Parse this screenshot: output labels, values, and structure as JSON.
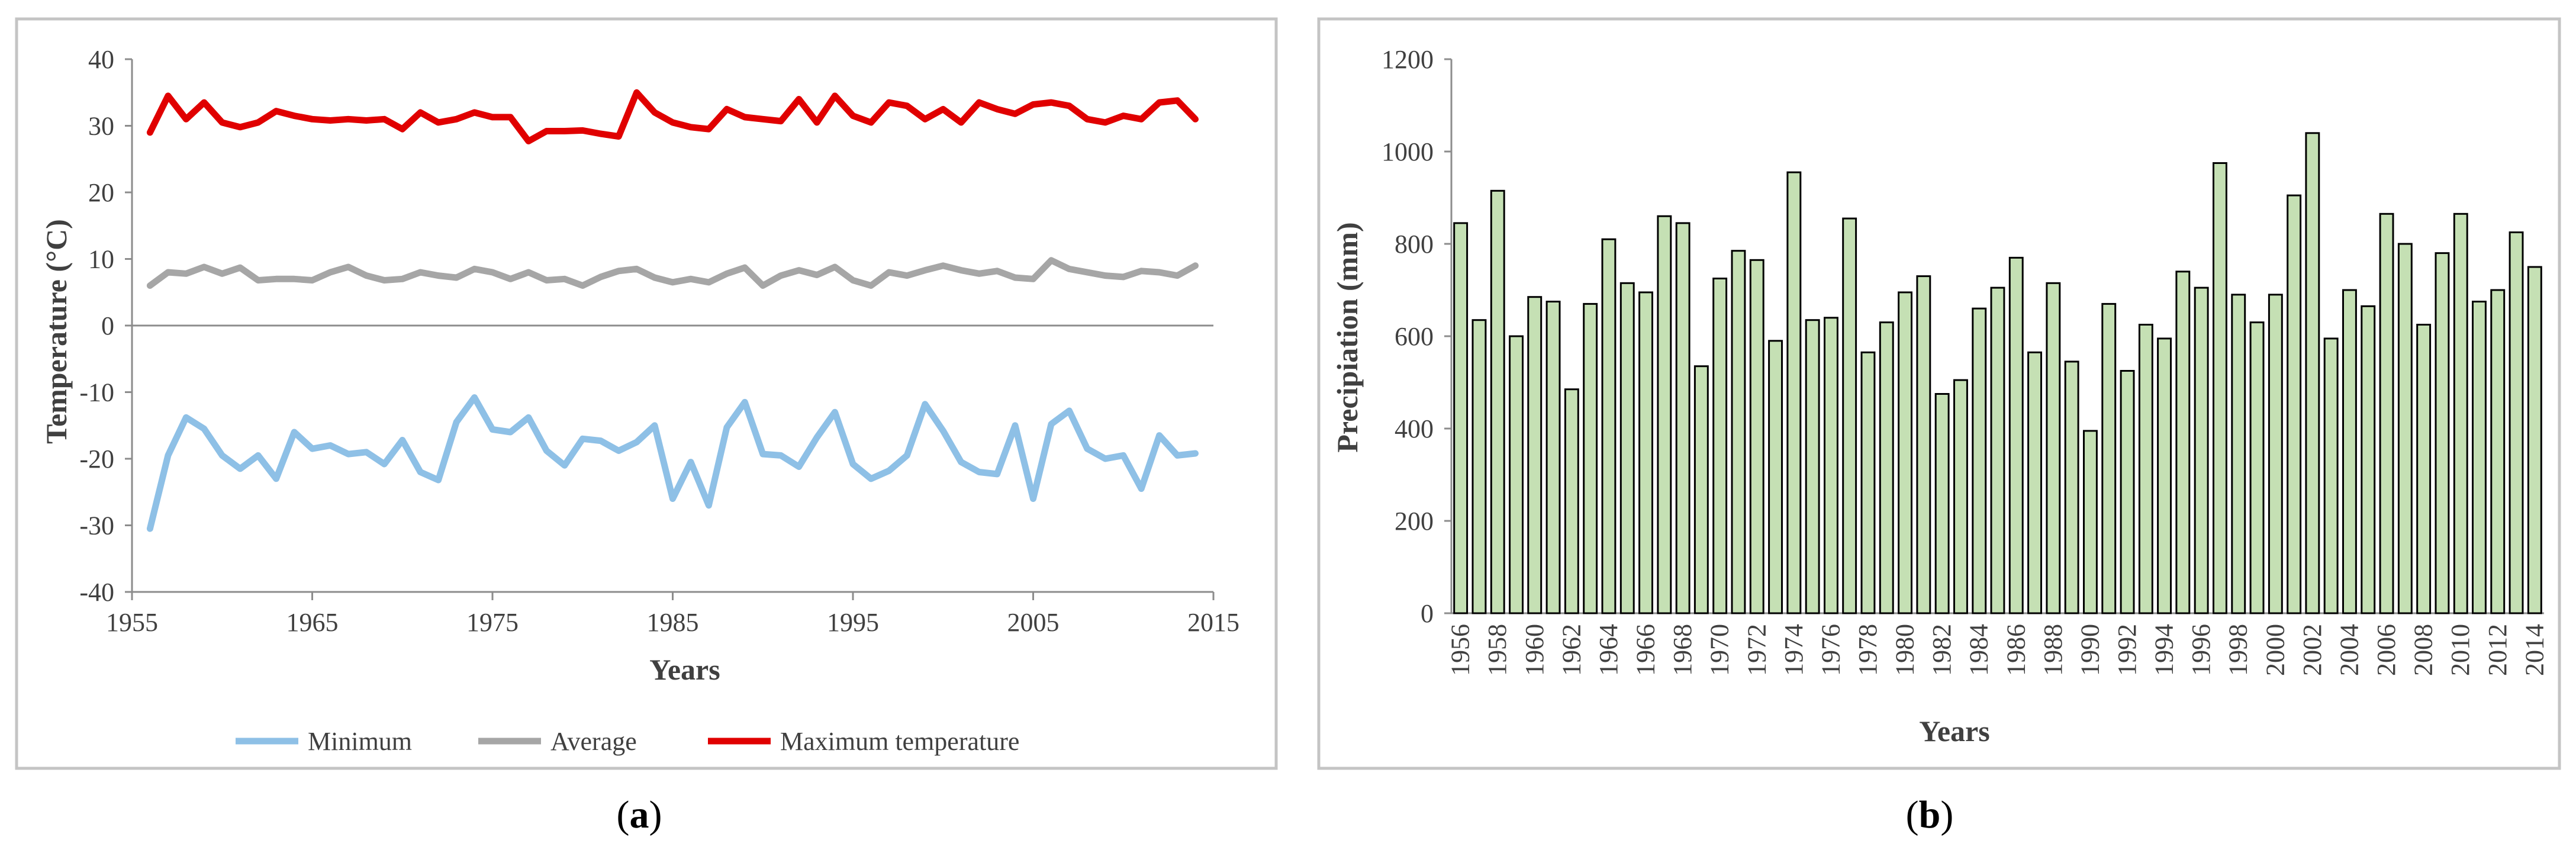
{
  "chart_data": [
    {
      "panel": "a",
      "type": "line",
      "caption_prefix": "(",
      "caption_letter": "a",
      "caption_suffix": ")",
      "xlabel": "Years",
      "ylabel": "Temperature (°C)",
      "xlim": [
        1955,
        2015
      ],
      "ylim": [
        -40,
        40
      ],
      "xticks": [
        1955,
        1965,
        1975,
        1985,
        1995,
        2005,
        2015
      ],
      "yticks": [
        40,
        30,
        20,
        10,
        0,
        -10,
        -20,
        -30,
        -40
      ],
      "x": [
        1956,
        1957,
        1958,
        1959,
        1960,
        1961,
        1962,
        1963,
        1964,
        1965,
        1966,
        1967,
        1968,
        1969,
        1970,
        1971,
        1972,
        1973,
        1974,
        1975,
        1976,
        1977,
        1978,
        1979,
        1980,
        1981,
        1982,
        1983,
        1984,
        1985,
        1986,
        1987,
        1988,
        1989,
        1990,
        1991,
        1992,
        1993,
        1994,
        1995,
        1996,
        1997,
        1998,
        1999,
        2000,
        2001,
        2002,
        2003,
        2004,
        2005,
        2006,
        2007,
        2008,
        2009,
        2010,
        2011,
        2012,
        2013,
        2014
      ],
      "series": [
        {
          "name": "Minimum",
          "color": "#8ec0e6",
          "values": [
            -30.5,
            -19.5,
            -13.8,
            -15.5,
            -19.5,
            -21.5,
            -19.5,
            -23,
            -16,
            -18.5,
            -18,
            -19.3,
            -19,
            -20.8,
            -17.2,
            -22,
            -23.2,
            -14.5,
            -10.8,
            -15.6,
            -16,
            -13.8,
            -18.8,
            -21,
            -17,
            -17.3,
            -18.8,
            -17.5,
            -15,
            -26,
            -20.5,
            -27,
            -15.3,
            -11.5,
            -19.3,
            -19.5,
            -21.2,
            -16.8,
            -13,
            -20.8,
            -23,
            -21.8,
            -19.5,
            -11.8,
            -15.8,
            -20.5,
            -22,
            -22.3,
            -15,
            -26,
            -14.8,
            -12.8,
            -18.5,
            -20,
            -19.5,
            -24.5,
            -16.5,
            -19.5,
            -19.2
          ]
        },
        {
          "name": "Average",
          "color": "#a6a6a6",
          "values": [
            6,
            8,
            7.8,
            8.8,
            7.8,
            8.7,
            6.8,
            7,
            7,
            6.8,
            8,
            8.8,
            7.5,
            6.8,
            7,
            8,
            7.5,
            7.2,
            8.5,
            8,
            7,
            8,
            6.8,
            7,
            6,
            7.3,
            8.2,
            8.5,
            7.2,
            6.5,
            7,
            6.5,
            7.8,
            8.7,
            6,
            7.5,
            8.3,
            7.6,
            8.8,
            6.8,
            6,
            8,
            7.5,
            8.3,
            9,
            8.3,
            7.8,
            8.2,
            7.2,
            7,
            9.8,
            8.5,
            8,
            7.5,
            7.3,
            8.2,
            8,
            7.5,
            9
          ]
        },
        {
          "name": "Maximum temperature",
          "color": "#e00000",
          "values": [
            29,
            34.5,
            31,
            33.5,
            30.5,
            29.8,
            30.5,
            32.2,
            31.5,
            31,
            30.8,
            31,
            30.8,
            31,
            29.5,
            32,
            30.5,
            31,
            32,
            31.3,
            31.3,
            27.7,
            29.2,
            29.2,
            29.3,
            28.8,
            28.4,
            35,
            32,
            30.5,
            29.8,
            29.5,
            32.5,
            31.3,
            31,
            30.7,
            34,
            30.5,
            34.5,
            31.5,
            30.5,
            33.5,
            33,
            31,
            32.5,
            30.5,
            33.5,
            32.5,
            31.8,
            33.2,
            33.5,
            33,
            31,
            30.5,
            31.5,
            31,
            33.5,
            33.8,
            31
          ]
        }
      ]
    },
    {
      "panel": "b",
      "type": "bar",
      "caption_prefix": "(",
      "caption_letter": "b",
      "caption_suffix": ")",
      "xlabel": "Years",
      "ylabel": "Precipiation (mm)",
      "ylim": [
        0,
        1200
      ],
      "yticks": [
        1200,
        1000,
        800,
        600,
        400,
        200,
        0
      ],
      "bar_color": "#c5e0b4",
      "categories": [
        1956,
        1957,
        1958,
        1959,
        1960,
        1961,
        1962,
        1963,
        1964,
        1965,
        1966,
        1967,
        1968,
        1969,
        1970,
        1971,
        1972,
        1973,
        1974,
        1975,
        1976,
        1977,
        1978,
        1979,
        1980,
        1981,
        1982,
        1983,
        1984,
        1985,
        1986,
        1987,
        1988,
        1989,
        1990,
        1991,
        1992,
        1993,
        1994,
        1995,
        1996,
        1997,
        1998,
        1999,
        2000,
        2001,
        2002,
        2003,
        2004,
        2005,
        2006,
        2007,
        2008,
        2009,
        2010,
        2011,
        2012,
        2013,
        2014
      ],
      "tick_labels": [
        "1956",
        "1958",
        "1960",
        "1962",
        "1964",
        "1966",
        "1968",
        "1970",
        "1972",
        "1974",
        "1976",
        "1978",
        "1980",
        "1982",
        "1984",
        "1986",
        "1988",
        "1990",
        "1992",
        "1994",
        "1996",
        "1998",
        "2000",
        "2002",
        "2004",
        "2006",
        "2008",
        "2010",
        "2012",
        "2014"
      ],
      "values": [
        845,
        635,
        915,
        600,
        685,
        675,
        485,
        670,
        810,
        715,
        695,
        860,
        845,
        535,
        725,
        785,
        765,
        590,
        955,
        635,
        640,
        855,
        565,
        630,
        695,
        730,
        475,
        505,
        660,
        705,
        770,
        565,
        715,
        545,
        395,
        670,
        525,
        625,
        595,
        740,
        705,
        975,
        690,
        630,
        690,
        905,
        1040,
        595,
        700,
        665,
        865,
        800,
        625,
        780,
        865,
        675,
        700,
        825,
        750
      ]
    }
  ]
}
